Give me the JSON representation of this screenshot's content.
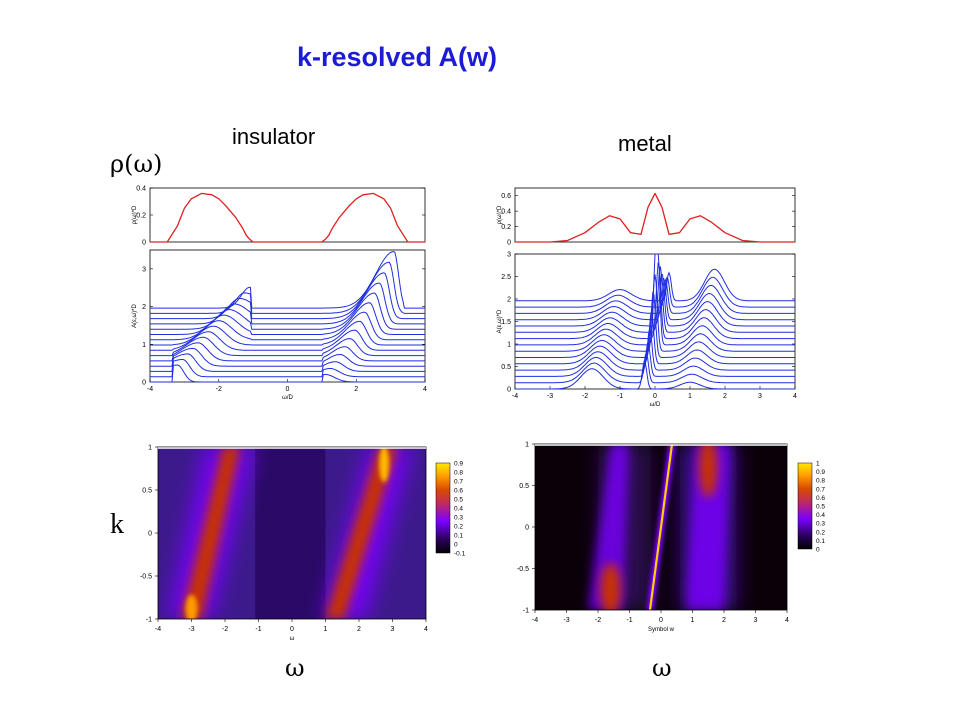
{
  "slide": {
    "title": "k-resolved A(w)",
    "insulator_label": "insulator",
    "metal_label": "metal",
    "rho_label": "ρ(ω)",
    "k_label": "k",
    "omega_left": "ω",
    "omega_right": "ω"
  },
  "colors": {
    "title": "#1c1cd8",
    "dos_curve": "#e02020",
    "spectral_curves": "#1f2ee0",
    "heatmap_low": "#000000",
    "heatmap_mid": "#7a00ff",
    "heatmap_high": "#c83200",
    "heatmap_top": "#ffea00"
  },
  "chart_data": [
    {
      "id": "ins_dos",
      "type": "line",
      "title": "",
      "xlabel": "",
      "ylabel": "ρ(ω)*D",
      "xlim": [
        -4,
        4
      ],
      "ylim": [
        0,
        0.4
      ],
      "yticks": [
        0,
        0.2,
        0.4
      ],
      "xticks": [],
      "series": [
        {
          "x": [
            -4,
            -3.5,
            -3.2,
            -3.0,
            -2.8,
            -2.5,
            -2.2,
            -2.0,
            -1.8,
            -1.5,
            -1.3,
            -1.2,
            -1.1,
            -1.0,
            0,
            1.0,
            1.1,
            1.2,
            1.3,
            1.5,
            1.8,
            2.0,
            2.2,
            2.5,
            2.8,
            3.0,
            3.2,
            3.5,
            4
          ],
          "y": [
            0,
            0,
            0.12,
            0.25,
            0.32,
            0.36,
            0.35,
            0.32,
            0.27,
            0.18,
            0.1,
            0.05,
            0.02,
            0,
            0,
            0,
            0.02,
            0.05,
            0.1,
            0.18,
            0.27,
            0.32,
            0.35,
            0.36,
            0.32,
            0.25,
            0.12,
            0,
            0
          ]
        }
      ]
    },
    {
      "id": "ins_akw",
      "type": "line",
      "title": "",
      "xlabel": "ω/D",
      "ylabel": "A(ε,ω)*D",
      "xlim": [
        -4,
        4
      ],
      "ylim": [
        0,
        3.5
      ],
      "yticks": [
        0,
        1,
        2,
        3
      ],
      "xticks": [
        -4,
        -2,
        0,
        2,
        4
      ],
      "curve_count": 15,
      "offset_step": 0.14,
      "lower_band": {
        "k_min_peak_x": -3.2,
        "k_max_peak_x": -1.1,
        "k_min_height": 0.45,
        "k_max_height": 0.55
      },
      "upper_band": {
        "k_min_peak_x": 1.1,
        "k_max_peak_x": 3.1,
        "k_min_height": 0.2,
        "k_max_height": 1.5
      }
    },
    {
      "id": "met_dos",
      "type": "line",
      "title": "",
      "xlabel": "",
      "ylabel": "ρ(ω)*D",
      "xlim": [
        -4,
        4
      ],
      "ylim": [
        0,
        0.7
      ],
      "yticks": [
        0,
        0.2,
        0.4,
        0.6
      ],
      "xticks": [],
      "series": [
        {
          "x": [
            -4,
            -3,
            -2.5,
            -2.0,
            -1.6,
            -1.3,
            -1.0,
            -0.7,
            -0.4,
            -0.2,
            0,
            0.2,
            0.4,
            0.7,
            1.0,
            1.3,
            1.6,
            2.0,
            2.5,
            3,
            4
          ],
          "y": [
            0,
            0,
            0.02,
            0.12,
            0.26,
            0.34,
            0.3,
            0.12,
            0.1,
            0.45,
            0.63,
            0.45,
            0.1,
            0.12,
            0.3,
            0.34,
            0.26,
            0.12,
            0.02,
            0,
            0
          ]
        }
      ]
    },
    {
      "id": "met_akw",
      "type": "line",
      "title": "",
      "xlabel": "ω/D",
      "ylabel": "A(ε,ω)*D",
      "xlim": [
        -4,
        4
      ],
      "ylim": [
        0,
        3
      ],
      "yticks": [
        0,
        0.5,
        1,
        1.5,
        2,
        2.5,
        3
      ],
      "xticks": [
        -4,
        -3,
        -2,
        -1,
        0,
        1,
        2,
        3,
        4
      ],
      "curve_count": 15,
      "offset_step": 0.14
    },
    {
      "id": "ins_map",
      "type": "heatmap",
      "title": "",
      "xlabel": "ω",
      "ylabel": "k",
      "xlim": [
        -4,
        4
      ],
      "ylim": [
        -1,
        1
      ],
      "xticks": [
        -4,
        -3,
        -2,
        -1,
        0,
        1,
        2,
        3,
        4
      ],
      "yticks": [
        -1,
        -0.5,
        0,
        0.5,
        1
      ],
      "colorbar_ticks": [
        "0.9",
        "0.8",
        "0.7",
        "0.6",
        "0.5",
        "0.4",
        "0.3",
        "0.2",
        "0.1",
        "0",
        "-0.1"
      ]
    },
    {
      "id": "met_map",
      "type": "heatmap",
      "title": "",
      "xlabel": "Symbol w",
      "ylabel": "k",
      "xlim": [
        -4,
        4
      ],
      "ylim": [
        -1,
        1
      ],
      "xticks": [
        -4,
        -3,
        -2,
        -1,
        0,
        1,
        2,
        3,
        4
      ],
      "yticks": [
        -1,
        -0.5,
        0,
        0.5,
        1
      ],
      "colorbar_ticks": [
        "1",
        "0.9",
        "0.8",
        "0.7",
        "0.6",
        "0.5",
        "0.4",
        "0.3",
        "0.2",
        "0.1",
        "0"
      ]
    }
  ]
}
